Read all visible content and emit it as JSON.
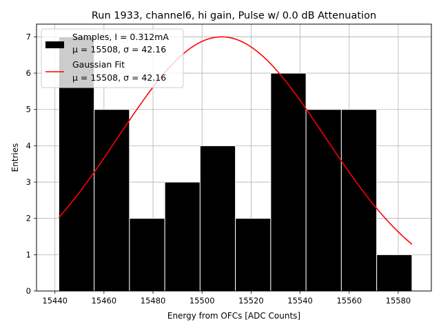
{
  "chart_data": {
    "type": "bar",
    "title": "Run 1933, channel6, hi gain, Pulse w/ 0.0 dB Attenuation",
    "xlabel": "Energy from OFCs [ADC Counts]",
    "ylabel": "Entries",
    "xlim": [
      15432.5,
      15593.5
    ],
    "ylim": [
      0,
      7.35
    ],
    "xticks": [
      15440,
      15460,
      15480,
      15500,
      15520,
      15540,
      15560,
      15580
    ],
    "yticks": [
      0,
      1,
      2,
      3,
      4,
      5,
      6,
      7
    ],
    "grid": true,
    "legend_position": "top-left",
    "histogram": {
      "name": "Samples, I = 0.312mA",
      "stats": "μ = 15508, σ = 42.16",
      "color": "#000000",
      "edges": [
        15441.6,
        15456.0,
        15470.4,
        15484.8,
        15499.2,
        15513.6,
        15528.0,
        15542.4,
        15556.8,
        15571.2,
        15585.6
      ],
      "values": [
        7,
        5,
        2,
        3,
        4,
        2,
        6,
        5,
        5,
        1
      ]
    },
    "fit": {
      "name": "Gaussian Fit",
      "stats": "μ = 15508, σ = 42.16",
      "color": "#ff0000",
      "mu": 15508,
      "sigma": 42.16,
      "amplitude": 7.0,
      "x_range": [
        15441.6,
        15585.6
      ]
    }
  }
}
